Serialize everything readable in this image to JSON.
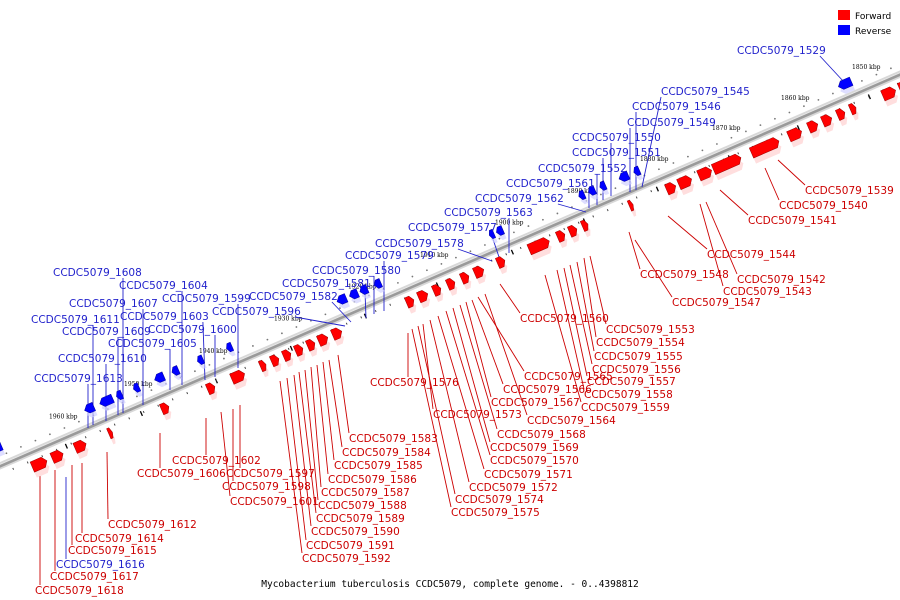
{
  "colors": {
    "forward": "#ff0000",
    "reverse": "#0000ff",
    "axis": "#999999",
    "forward_label": "#cc0000",
    "reverse_label": "#2222cc"
  },
  "legend": {
    "forward_label": "Forward",
    "reverse_label": "Reverse"
  },
  "caption": "Mycobacterium tuberculosis CCDC5079, complete genome. - 0..4398812",
  "axis_ticks": [
    {
      "kbp": 1850,
      "label": "1850 kbp"
    },
    {
      "kbp": 1860,
      "label": "1860 kbp"
    },
    {
      "kbp": 1870,
      "label": "1870 kbp"
    },
    {
      "kbp": 1880,
      "label": "1880 kbp"
    },
    {
      "kbp": 1890,
      "label": "1890 kbp"
    },
    {
      "kbp": 1900,
      "label": "1900 kbp"
    },
    {
      "kbp": 1910,
      "label": "1910 kbp"
    },
    {
      "kbp": 1920,
      "label": "1920 kbp"
    },
    {
      "kbp": 1930,
      "label": "1930 kbp"
    },
    {
      "kbp": 1940,
      "label": "1940 kbp"
    },
    {
      "kbp": 1950,
      "label": "1950 kbp"
    },
    {
      "kbp": 1960,
      "label": "1960 kbp"
    }
  ],
  "reverse_genes": [
    "CCDC5079_1529",
    "CCDC5079_1545",
    "CCDC5079_1546",
    "CCDC5079_1549",
    "CCDC5079_1550",
    "CCDC5079_1551",
    "CCDC5079_1552",
    "CCDC5079_1561",
    "CCDC5079_1562",
    "CCDC5079_1563",
    "CCDC5079_1577",
    "CCDC5079_1578",
    "CCDC5079_1579",
    "CCDC5079_1580",
    "CCDC5079_1581",
    "CCDC5079_1582",
    "CCDC5079_1596",
    "CCDC5079_1599",
    "CCDC5079_1600",
    "CCDC5079_1603",
    "CCDC5079_1604",
    "CCDC5079_1605",
    "CCDC5079_1607",
    "CCDC5079_1608",
    "CCDC5079_1609",
    "CCDC5079_1610",
    "CCDC5079_1611",
    "CCDC5079_1613",
    "CCDC5079_1616"
  ],
  "forward_genes": [
    "CCDC5079_1539",
    "CCDC5079_1540",
    "CCDC5079_1541",
    "CCDC5079_1542",
    "CCDC5079_1543",
    "CCDC5079_1544",
    "CCDC5079_1547",
    "CCDC5079_1548",
    "CCDC5079_1553",
    "CCDC5079_1554",
    "CCDC5079_1555",
    "CCDC5079_1556",
    "CCDC5079_1557",
    "CCDC5079_1558",
    "CCDC5079_1559",
    "CCDC5079_1560",
    "CCDC5079_1564",
    "CCDC5079_1565",
    "CCDC5079_1566",
    "CCDC5079_1567",
    "CCDC5079_1568",
    "CCDC5079_1569",
    "CCDC5079_1570",
    "CCDC5079_1571",
    "CCDC5079_1572",
    "CCDC5079_1573",
    "CCDC5079_1574",
    "CCDC5079_1575",
    "CCDC5079_1576",
    "CCDC5079_1583",
    "CCDC5079_1584",
    "CCDC5079_1585",
    "CCDC5079_1586",
    "CCDC5079_1587",
    "CCDC5079_1588",
    "CCDC5079_1589",
    "CCDC5079_1590",
    "CCDC5079_1591",
    "CCDC5079_1592",
    "CCDC5079_1597",
    "CCDC5079_1598",
    "CCDC5079_1601",
    "CCDC5079_1602",
    "CCDC5079_1606",
    "CCDC5079_1612",
    "CCDC5079_1614",
    "CCDC5079_1615",
    "CCDC5079_1617",
    "CCDC5079_1618"
  ]
}
